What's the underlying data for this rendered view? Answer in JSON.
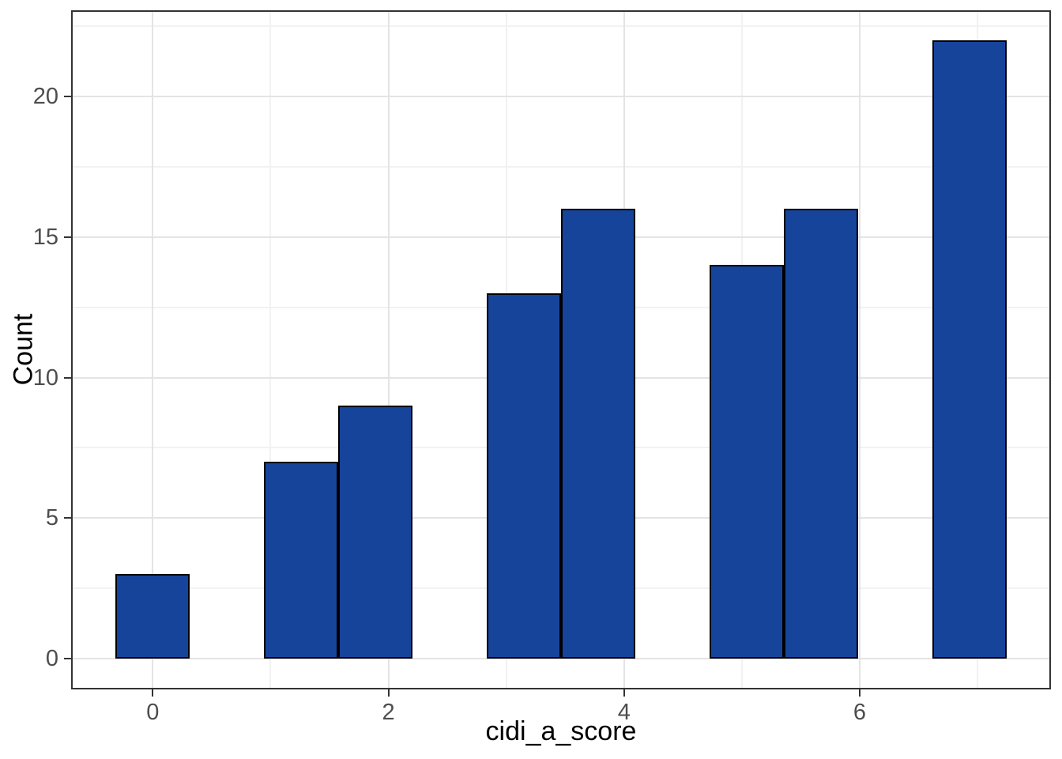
{
  "chart_data": {
    "type": "bar",
    "subtype": "histogram",
    "title": "",
    "xlabel": "cidi_a_score",
    "ylabel": "Count",
    "bars": [
      {
        "x": 0.0,
        "count": 3
      },
      {
        "x": 1.26,
        "count": 7
      },
      {
        "x": 1.89,
        "count": 9
      },
      {
        "x": 3.15,
        "count": 13
      },
      {
        "x": 3.78,
        "count": 16
      },
      {
        "x": 5.04,
        "count": 14
      },
      {
        "x": 5.67,
        "count": 16
      },
      {
        "x": 6.93,
        "count": 22
      }
    ],
    "bar_width": 0.63,
    "x_ticks": [
      0,
      2,
      4,
      6
    ],
    "x_tick_labels": [
      "0",
      "2",
      "4",
      "6"
    ],
    "x_minor_ticks": [
      1,
      3,
      5,
      7
    ],
    "y_ticks": [
      0,
      5,
      10,
      15,
      20
    ],
    "y_tick_labels": [
      "0",
      "5",
      "10",
      "15",
      "20"
    ],
    "y_minor_ticks": [
      2.5,
      7.5,
      12.5,
      17.5,
      22.5
    ],
    "xlim": [
      -0.693,
      7.623
    ],
    "ylim": [
      -1.1,
      23.07
    ],
    "grid": "major+minor",
    "legend": "none",
    "colors": {
      "bar_fill": "#17449B",
      "bar_border": "#000000",
      "grid_major": "#E4E4E4",
      "grid_minor": "#F2F2F2",
      "panel_border": "#333333",
      "tick_mark": "#333333",
      "tick_label": "#4D4D4D",
      "axis_title": "#000000",
      "background": "#FFFFFF"
    }
  }
}
